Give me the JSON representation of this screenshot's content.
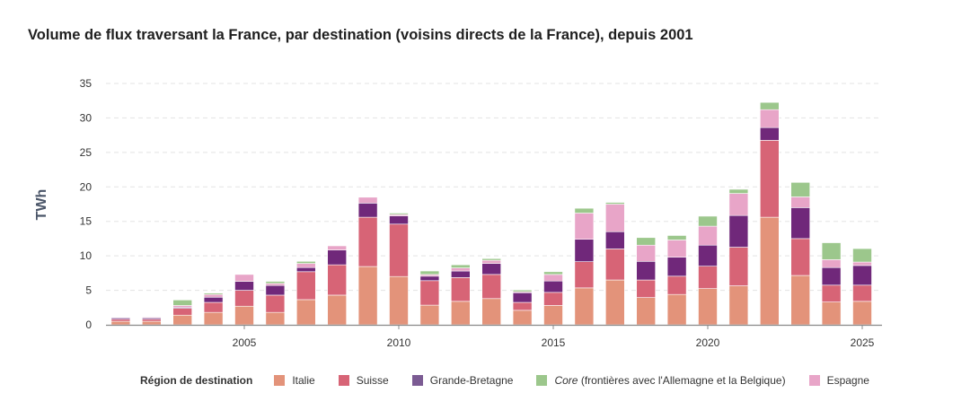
{
  "chart_data": {
    "type": "bar",
    "stacked": true,
    "title": "Volume de flux traversant la France, par destination (voisins directs de la France), depuis 2001",
    "ylabel": "TWh",
    "xlabel": "",
    "ylim": [
      0,
      35
    ],
    "yticks": [
      0,
      5,
      10,
      15,
      20,
      25,
      30,
      35
    ],
    "xticks": [
      2005,
      2010,
      2015,
      2020,
      2025
    ],
    "grid": true,
    "legend_title": "Région de destination",
    "legend_position": "bottom",
    "categories": [
      2001,
      2002,
      2003,
      2004,
      2005,
      2006,
      2007,
      2008,
      2009,
      2010,
      2011,
      2012,
      2013,
      2014,
      2015,
      2016,
      2017,
      2018,
      2019,
      2020,
      2021,
      2022,
      2023,
      2024,
      2025
    ],
    "series": [
      {
        "name": "Italie",
        "color": "#e3937a",
        "values": [
          0.5,
          0.5,
          1.4,
          1.8,
          2.7,
          1.8,
          3.65,
          4.3,
          8.45,
          7.0,
          2.85,
          3.4,
          3.8,
          2.1,
          2.8,
          5.35,
          6.5,
          3.95,
          4.4,
          5.25,
          5.65,
          15.6,
          7.15,
          3.3,
          3.4
        ]
      },
      {
        "name": "Suisse",
        "color": "#d76476",
        "values": [
          0.3,
          0.3,
          1.0,
          1.45,
          2.3,
          2.5,
          4.05,
          4.4,
          7.15,
          7.6,
          3.55,
          3.45,
          3.5,
          1.15,
          1.9,
          3.8,
          4.5,
          2.55,
          2.65,
          3.25,
          5.6,
          11.15,
          5.35,
          2.45,
          2.35
        ]
      },
      {
        "name": "Grande-Bretagne",
        "color": "#70287a",
        "legend_color": "#7b5b93",
        "values": [
          0.2,
          0.2,
          0.15,
          0.75,
          1.3,
          1.4,
          0.6,
          2.15,
          2.05,
          1.2,
          0.65,
          0.95,
          1.6,
          1.4,
          1.65,
          3.25,
          2.5,
          2.7,
          2.75,
          3.05,
          4.6,
          1.85,
          4.5,
          2.55,
          2.85
        ]
      },
      {
        "name": "Espagne",
        "color": "#e8a5c8",
        "values": [
          0.05,
          0.1,
          0.25,
          0.4,
          1.0,
          0.3,
          0.6,
          0.6,
          0.85,
          0.2,
          0.25,
          0.45,
          0.45,
          0.15,
          0.95,
          3.8,
          4.0,
          2.35,
          2.5,
          2.75,
          3.2,
          2.6,
          1.55,
          1.15,
          0.5
        ]
      },
      {
        "name": "Core (frontières avec l'Allemagne et la Belgique)",
        "name_italic": "Core",
        "name_rest": " (frontières avec l'Allemagne et la Belgique)",
        "color": "#9cc78c",
        "values": [
          0,
          0,
          0.8,
          0.2,
          0,
          0.3,
          0.3,
          0,
          0,
          0.2,
          0.5,
          0.45,
          0.25,
          0.25,
          0.4,
          0.7,
          0.25,
          1.1,
          0.65,
          1.45,
          0.6,
          1.05,
          2.1,
          2.45,
          1.95
        ]
      }
    ]
  }
}
